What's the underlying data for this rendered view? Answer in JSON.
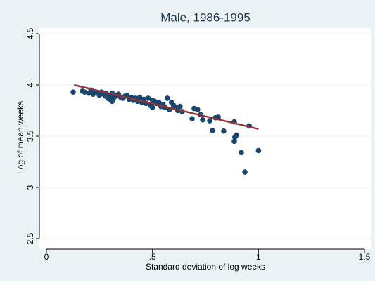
{
  "chart_data": {
    "type": "scatter",
    "title": "Male, 1986-1995",
    "x_label": "Standard deviation of log weeks",
    "y_label": "Log of mean weeks",
    "x": [
      0.126,
      0.17,
      0.18,
      0.2,
      0.21,
      0.22,
      0.23,
      0.24,
      0.25,
      0.26,
      0.27,
      0.28,
      0.28,
      0.29,
      0.3,
      0.3,
      0.31,
      0.31,
      0.32,
      0.33,
      0.34,
      0.35,
      0.36,
      0.37,
      0.38,
      0.39,
      0.4,
      0.41,
      0.42,
      0.43,
      0.44,
      0.45,
      0.46,
      0.47,
      0.48,
      0.49,
      0.5,
      0.5,
      0.51,
      0.52,
      0.53,
      0.54,
      0.55,
      0.56,
      0.57,
      0.58,
      0.59,
      0.6,
      0.61,
      0.62,
      0.63,
      0.64,
      0.687,
      0.697,
      0.713,
      0.727,
      0.737,
      0.77,
      0.783,
      0.797,
      0.81,
      0.836,
      0.886,
      0.889,
      0.886,
      0.896,
      0.919,
      0.936,
      0.956,
      1.0
    ],
    "y": [
      3.93,
      3.94,
      3.93,
      3.92,
      3.95,
      3.91,
      3.93,
      3.92,
      3.9,
      3.93,
      3.91,
      3.89,
      3.92,
      3.87,
      3.9,
      3.86,
      3.92,
      3.84,
      3.88,
      3.9,
      3.91,
      3.88,
      3.87,
      3.89,
      3.9,
      3.86,
      3.88,
      3.85,
      3.87,
      3.84,
      3.88,
      3.83,
      3.86,
      3.82,
      3.87,
      3.8,
      3.85,
      3.78,
      3.84,
      3.82,
      3.83,
      3.79,
      3.81,
      3.78,
      3.87,
      3.76,
      3.83,
      3.8,
      3.78,
      3.75,
      3.79,
      3.74,
      3.67,
      3.77,
      3.76,
      3.71,
      3.66,
      3.65,
      3.555,
      3.68,
      3.685,
      3.55,
      3.64,
      3.49,
      3.45,
      3.51,
      3.34,
      3.15,
      3.6,
      3.36
    ],
    "color": "#1a476f",
    "fit": {
      "x": [
        0.13,
        1.0
      ],
      "y": [
        4.0,
        3.57
      ],
      "color": "#90353b"
    },
    "xlim": [
      0,
      1.5
    ],
    "ylim": [
      2.5,
      4.5
    ],
    "xticks": [
      0,
      {
        "value": 0.5,
        "label": ".5"
      },
      1,
      1.5
    ],
    "yticks": [
      2.5,
      3,
      3.5,
      4,
      4.5
    ],
    "grid": true
  }
}
